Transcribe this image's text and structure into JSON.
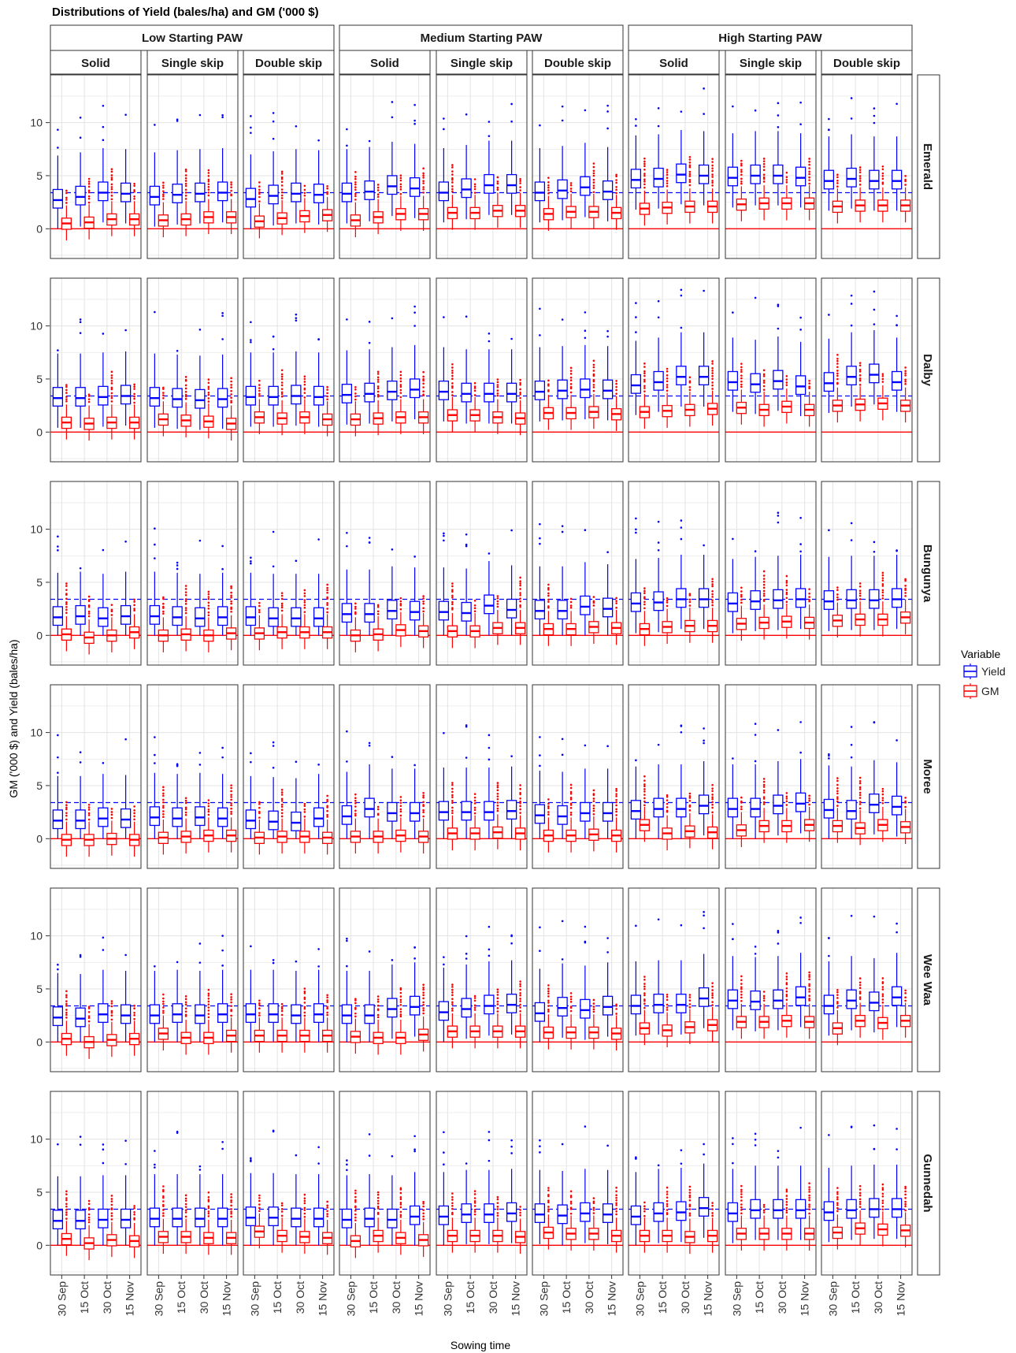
{
  "chart_data": {
    "type": "boxplot",
    "title": "Distributions of Yield (bales/ha) and GM ('000 $)",
    "xlabel": "Sowing time",
    "ylabel": "GM ('000 $) and Yield (bales/ha)",
    "ylim": [
      -2.8,
      14.5
    ],
    "yticks": [
      0,
      5,
      10
    ],
    "x_categories": [
      "30 Sep",
      "15 Oct",
      "30 Oct",
      "15 Nov"
    ],
    "paw_levels": [
      "Low Starting PAW",
      "Medium Starting PAW",
      "High Starting PAW"
    ],
    "configurations": [
      "Solid",
      "Single skip",
      "Double skip"
    ],
    "locations": [
      "Emerald",
      "Dalby",
      "Bungunya",
      "Moree",
      "Wee Waa",
      "Gunnedah"
    ],
    "legend": {
      "title": "Variable",
      "entries": [
        "Yield",
        "GM"
      ],
      "position": "right"
    },
    "colors": {
      "Yield": "#0000ff",
      "GM": "#ff0000",
      "grid": "#e3e3e3",
      "frame": "#333333",
      "strip": "#ffffff"
    },
    "reference_lines": {
      "yield_dashed": [
        3.4,
        3.4,
        3.4,
        3.4,
        3.4,
        3.4
      ],
      "gm_zero": [
        0,
        0,
        0,
        0,
        0,
        0
      ]
    },
    "grid": true,
    "series_medians": {
      "Yield": [
        [
          [
            2.7,
            3.0,
            3.4,
            3.3
          ],
          [
            3.0,
            3.2,
            3.3,
            3.4
          ],
          [
            2.8,
            3.1,
            3.3,
            3.2
          ],
          [
            3.3,
            3.5,
            4.0,
            3.8
          ],
          [
            3.4,
            3.7,
            4.1,
            4.1
          ],
          [
            3.4,
            3.6,
            3.9,
            3.5
          ],
          [
            4.6,
            4.7,
            5.1,
            5.0
          ],
          [
            4.8,
            5.0,
            5.0,
            4.8
          ],
          [
            4.5,
            4.7,
            4.5,
            4.5
          ]
        ],
        [
          [
            3.2,
            3.2,
            3.3,
            3.4
          ],
          [
            3.2,
            3.1,
            3.0,
            3.1
          ],
          [
            3.3,
            3.3,
            3.4,
            3.3
          ],
          [
            3.5,
            3.6,
            3.8,
            4.0
          ],
          [
            3.8,
            3.6,
            3.6,
            3.6
          ],
          [
            3.8,
            3.9,
            4.0,
            3.9
          ],
          [
            4.4,
            4.7,
            5.2,
            5.2
          ],
          [
            4.7,
            4.5,
            4.8,
            4.3
          ],
          [
            4.6,
            5.2,
            5.4,
            4.7
          ]
        ],
        [
          [
            1.7,
            1.8,
            1.6,
            1.8
          ],
          [
            1.8,
            1.7,
            1.6,
            1.7
          ],
          [
            1.7,
            1.6,
            1.6,
            1.6
          ],
          [
            2.0,
            2.0,
            2.3,
            2.2
          ],
          [
            2.2,
            2.1,
            2.8,
            2.4
          ],
          [
            2.3,
            2.3,
            2.7,
            2.5
          ],
          [
            3.0,
            3.1,
            3.4,
            3.4
          ],
          [
            3.0,
            3.2,
            3.3,
            3.4
          ],
          [
            3.2,
            3.3,
            3.3,
            3.4
          ]
        ],
        [
          [
            1.7,
            1.7,
            1.9,
            1.8
          ],
          [
            2.0,
            1.9,
            2.0,
            1.9
          ],
          [
            1.7,
            1.6,
            1.5,
            1.9
          ],
          [
            2.1,
            2.8,
            2.4,
            2.4
          ],
          [
            2.5,
            2.5,
            2.5,
            2.6
          ],
          [
            2.2,
            2.1,
            2.4,
            2.4
          ],
          [
            2.6,
            2.8,
            2.8,
            3.1
          ],
          [
            2.8,
            2.8,
            3.1,
            3.3
          ],
          [
            2.7,
            2.6,
            3.2,
            3.0
          ]
        ],
        [
          [
            2.3,
            2.2,
            2.6,
            2.5
          ],
          [
            2.5,
            2.6,
            2.5,
            2.6
          ],
          [
            2.6,
            2.6,
            2.5,
            2.6
          ],
          [
            2.5,
            2.5,
            3.1,
            3.3
          ],
          [
            2.8,
            3.1,
            3.4,
            3.5
          ],
          [
            2.7,
            3.2,
            3.0,
            3.3
          ],
          [
            3.4,
            3.5,
            3.5,
            4.1
          ],
          [
            3.9,
            3.8,
            3.9,
            4.2
          ],
          [
            3.4,
            3.9,
            3.7,
            4.2
          ]
        ],
        [
          [
            2.3,
            2.3,
            2.4,
            2.4
          ],
          [
            2.5,
            2.5,
            2.5,
            2.5
          ],
          [
            2.6,
            2.6,
            2.5,
            2.5
          ],
          [
            2.4,
            2.5,
            2.4,
            2.7
          ],
          [
            2.7,
            2.9,
            2.9,
            3.0
          ],
          [
            2.9,
            2.8,
            3.0,
            2.9
          ],
          [
            2.7,
            3.0,
            3.1,
            3.5
          ],
          [
            3.0,
            3.3,
            3.3,
            3.3
          ],
          [
            3.1,
            3.3,
            3.4,
            3.4
          ]
        ]
      ],
      "GM": [
        [
          [
            0.5,
            0.6,
            0.9,
            0.9
          ],
          [
            0.8,
            0.9,
            1.1,
            1.1
          ],
          [
            0.7,
            1.0,
            1.2,
            1.3
          ],
          [
            0.8,
            1.1,
            1.4,
            1.4
          ],
          [
            1.5,
            1.5,
            1.7,
            1.7
          ],
          [
            1.4,
            1.6,
            1.6,
            1.5
          ],
          [
            1.9,
            2.0,
            2.1,
            2.1
          ],
          [
            2.3,
            2.4,
            2.4,
            2.4
          ],
          [
            2.1,
            2.2,
            2.2,
            2.2
          ]
        ],
        [
          [
            0.9,
            0.8,
            0.9,
            0.9
          ],
          [
            1.2,
            1.1,
            1.0,
            0.8
          ],
          [
            1.4,
            1.3,
            1.4,
            1.2
          ],
          [
            1.2,
            1.3,
            1.4,
            1.4
          ],
          [
            1.6,
            1.6,
            1.4,
            1.3
          ],
          [
            1.8,
            1.8,
            1.9,
            1.7
          ],
          [
            1.9,
            2.0,
            2.1,
            2.2
          ],
          [
            2.3,
            2.1,
            2.4,
            2.1
          ],
          [
            2.5,
            2.6,
            2.7,
            2.5
          ]
        ],
        [
          [
            0.1,
            -0.2,
            0.0,
            0.3
          ],
          [
            0.0,
            0.1,
            0.0,
            0.2
          ],
          [
            0.2,
            0.3,
            0.3,
            0.3
          ],
          [
            0.0,
            0.1,
            0.5,
            0.4
          ],
          [
            0.4,
            0.4,
            0.7,
            0.7
          ],
          [
            0.6,
            0.6,
            0.8,
            0.7
          ],
          [
            0.6,
            0.8,
            0.9,
            0.9
          ],
          [
            1.1,
            1.2,
            1.3,
            1.2
          ],
          [
            1.4,
            1.5,
            1.5,
            1.7
          ]
        ],
        [
          [
            -0.1,
            -0.1,
            0.0,
            -0.1
          ],
          [
            0.1,
            0.2,
            0.3,
            0.3
          ],
          [
            0.1,
            0.2,
            0.2,
            0.1
          ],
          [
            0.2,
            0.2,
            0.3,
            0.2
          ],
          [
            0.5,
            0.5,
            0.6,
            0.5
          ],
          [
            0.3,
            0.3,
            0.4,
            0.3
          ],
          [
            1.3,
            0.5,
            0.7,
            0.6
          ],
          [
            0.8,
            1.2,
            1.2,
            1.3
          ],
          [
            1.2,
            1.0,
            1.3,
            1.1
          ]
        ],
        [
          [
            0.3,
            0.0,
            0.2,
            0.3
          ],
          [
            0.8,
            0.4,
            0.4,
            0.6
          ],
          [
            0.6,
            0.6,
            0.6,
            0.6
          ],
          [
            0.5,
            0.4,
            0.4,
            0.7
          ],
          [
            1.0,
            1.0,
            1.0,
            1.0
          ],
          [
            0.9,
            0.9,
            0.9,
            0.8
          ],
          [
            1.3,
            1.1,
            1.4,
            1.6
          ],
          [
            1.9,
            1.9,
            2.0,
            1.9
          ],
          [
            1.3,
            2.0,
            1.8,
            2.0
          ]
        ],
        [
          [
            0.6,
            0.2,
            0.5,
            0.4
          ],
          [
            0.8,
            0.8,
            0.7,
            0.7
          ],
          [
            1.3,
            0.9,
            0.8,
            0.7
          ],
          [
            0.4,
            0.9,
            0.7,
            0.5
          ],
          [
            0.9,
            0.9,
            0.9,
            0.8
          ],
          [
            1.2,
            1.1,
            1.1,
            0.9
          ],
          [
            0.9,
            0.9,
            0.8,
            0.9
          ],
          [
            1.1,
            1.1,
            1.1,
            1.1
          ],
          [
            1.2,
            1.6,
            1.5,
            1.4
          ]
        ]
      ]
    }
  }
}
